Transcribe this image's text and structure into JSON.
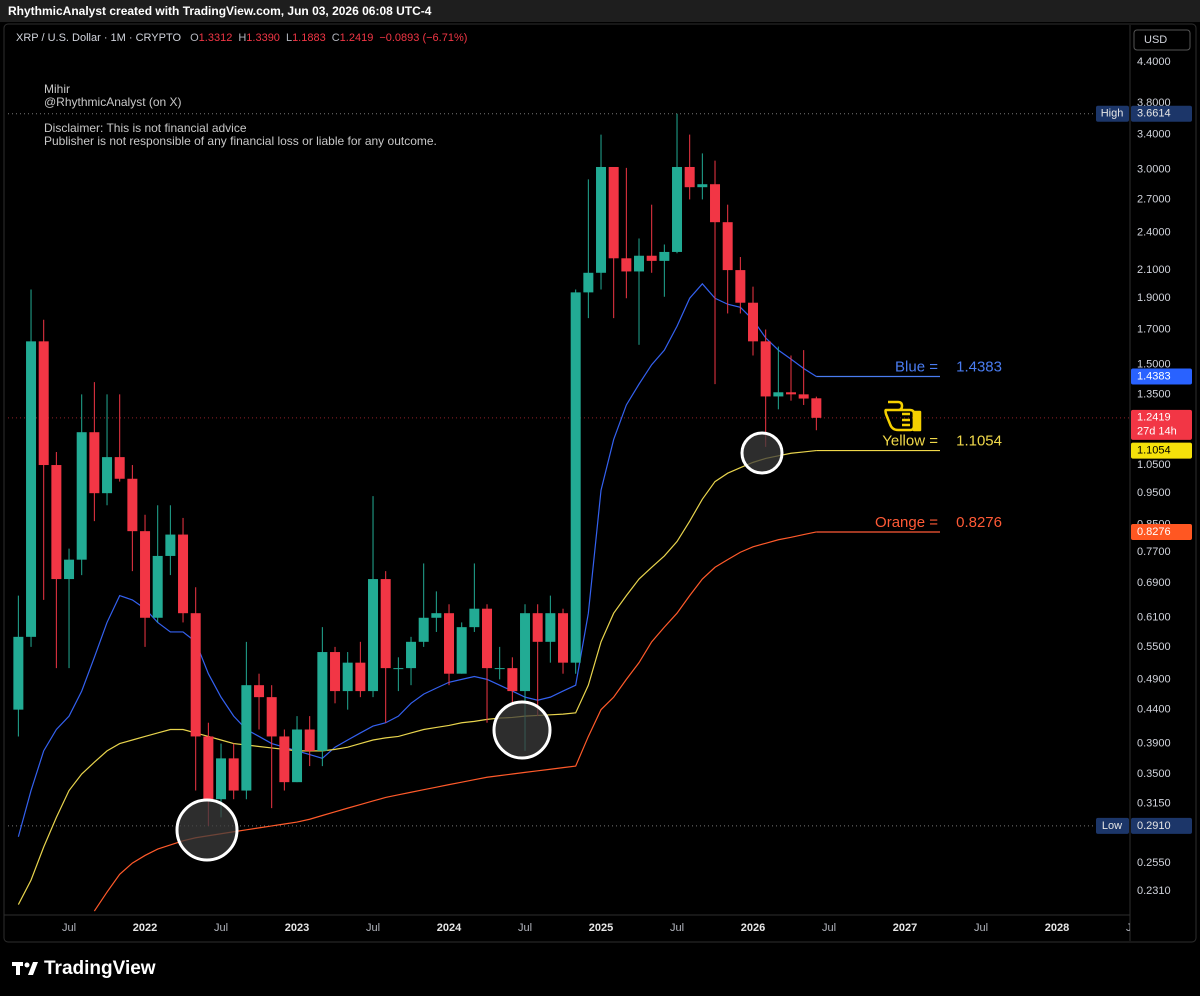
{
  "header": {
    "credit": "RhythmicAnalyst created with TradingView.com, Jun 03, 2026 06:08 UTC-4"
  },
  "footer": {
    "brand": "TradingView"
  },
  "chart_data": {
    "type": "candlestick",
    "title": "XRP / U.S. Dollar · 1M · CRYPTO",
    "ohlc_legend": [
      {
        "key": "O",
        "value": 1.3312
      },
      {
        "key": "H",
        "value": 1.339,
        "label": "1.3390"
      },
      {
        "key": "L",
        "value": 1.1883
      },
      {
        "key": "C",
        "value": 1.2419
      }
    ],
    "change": "−0.0893 (−6.71%)",
    "notes": [
      "Mihir",
      "@RhythmicAnalyst (on X)",
      "Disclaimer: This is not financial advice",
      "Publisher is not responsible of any financial loss or liable for any outcome."
    ],
    "currency": "USD",
    "x": [
      "2021-03",
      "2021-04",
      "2021-05",
      "2021-06",
      "2021-07",
      "2021-08",
      "2021-09",
      "2021-10",
      "2021-11",
      "2021-12",
      "2022-01",
      "2022-02",
      "2022-03",
      "2022-04",
      "2022-05",
      "2022-06",
      "2022-07",
      "2022-08",
      "2022-09",
      "2022-10",
      "2022-11",
      "2022-12",
      "2023-01",
      "2023-02",
      "2023-03",
      "2023-04",
      "2023-05",
      "2023-06",
      "2023-07",
      "2023-08",
      "2023-09",
      "2023-10",
      "2023-11",
      "2023-12",
      "2024-01",
      "2024-02",
      "2024-03",
      "2024-04",
      "2024-05",
      "2024-06",
      "2024-07",
      "2024-08",
      "2024-09",
      "2024-10",
      "2024-11",
      "2024-12",
      "2025-01",
      "2025-02",
      "2025-03",
      "2025-04",
      "2025-05",
      "2025-06",
      "2025-07",
      "2025-08",
      "2025-09",
      "2025-10",
      "2025-11",
      "2025-12",
      "2026-01",
      "2026-02",
      "2026-03",
      "2026-04",
      "2026-05",
      "2026-06"
    ],
    "open": [
      0.44,
      0.57,
      1.63,
      1.05,
      0.7,
      0.75,
      1.18,
      0.95,
      1.08,
      1.0,
      0.83,
      0.61,
      0.76,
      0.82,
      0.62,
      0.4,
      0.32,
      0.37,
      0.33,
      0.48,
      0.46,
      0.4,
      0.34,
      0.41,
      0.38,
      0.54,
      0.47,
      0.52,
      0.47,
      0.7,
      0.51,
      0.51,
      0.56,
      0.61,
      0.62,
      0.5,
      0.59,
      0.63,
      0.51,
      0.51,
      0.47,
      0.62,
      0.56,
      0.62,
      0.52,
      1.94,
      2.08,
      3.03,
      2.19,
      2.09,
      2.21,
      2.17,
      2.24,
      3.03,
      2.82,
      2.85,
      2.49,
      2.1,
      1.87,
      1.63,
      1.34,
      1.36,
      1.35,
      1.3312
    ],
    "high": [
      0.66,
      1.96,
      1.76,
      1.1,
      0.78,
      1.35,
      1.41,
      1.35,
      1.35,
      1.05,
      0.88,
      0.91,
      0.91,
      0.87,
      0.68,
      0.42,
      0.39,
      0.39,
      0.56,
      0.5,
      0.48,
      0.41,
      0.43,
      0.43,
      0.59,
      0.55,
      0.54,
      0.56,
      0.94,
      0.72,
      0.53,
      0.57,
      0.74,
      0.67,
      0.64,
      0.6,
      0.74,
      0.64,
      0.55,
      0.53,
      0.64,
      0.64,
      0.66,
      0.63,
      1.96,
      2.9,
      3.4,
      3.03,
      3.02,
      2.35,
      2.65,
      2.3,
      3.6614,
      3.4,
      3.18,
      3.1,
      2.65,
      2.2,
      1.98,
      1.7,
      1.6,
      1.55,
      1.58,
      1.339
    ],
    "low": [
      0.4,
      0.55,
      0.65,
      0.51,
      0.51,
      0.71,
      0.86,
      0.91,
      0.99,
      0.72,
      0.55,
      0.6,
      0.71,
      0.6,
      0.33,
      0.291,
      0.3,
      0.32,
      0.32,
      0.41,
      0.31,
      0.33,
      0.34,
      0.36,
      0.36,
      0.45,
      0.44,
      0.46,
      0.46,
      0.42,
      0.47,
      0.48,
      0.55,
      0.58,
      0.48,
      0.5,
      0.58,
      0.42,
      0.49,
      0.45,
      0.38,
      0.43,
      0.52,
      0.5,
      0.5,
      1.77,
      1.96,
      1.77,
      1.9,
      1.61,
      2.08,
      1.91,
      2.23,
      2.7,
      2.7,
      1.4,
      1.8,
      1.8,
      1.55,
      1.12,
      1.28,
      1.32,
      1.3,
      1.1883
    ],
    "close": [
      0.57,
      1.63,
      1.05,
      0.7,
      0.75,
      1.18,
      0.95,
      1.08,
      1.0,
      0.83,
      0.61,
      0.76,
      0.82,
      0.62,
      0.4,
      0.32,
      0.37,
      0.33,
      0.48,
      0.46,
      0.4,
      0.34,
      0.41,
      0.38,
      0.54,
      0.47,
      0.52,
      0.47,
      0.7,
      0.51,
      0.51,
      0.56,
      0.61,
      0.62,
      0.5,
      0.59,
      0.63,
      0.51,
      0.51,
      0.47,
      0.62,
      0.56,
      0.62,
      0.52,
      1.94,
      2.08,
      3.03,
      2.19,
      2.09,
      2.21,
      2.17,
      2.24,
      3.03,
      2.82,
      2.85,
      2.49,
      2.1,
      1.87,
      1.63,
      1.34,
      1.36,
      1.35,
      1.33,
      1.2419
    ],
    "up_color": "#22ab94",
    "down_color": "#f23645",
    "series": [
      {
        "color": "#3461f0",
        "values": [
          0.28,
          0.33,
          0.38,
          0.41,
          0.43,
          0.47,
          0.53,
          0.6,
          0.66,
          0.65,
          0.63,
          0.6,
          0.58,
          0.58,
          0.56,
          0.5,
          0.46,
          0.43,
          0.41,
          0.4,
          0.39,
          0.385,
          0.38,
          0.375,
          0.37,
          0.385,
          0.395,
          0.405,
          0.415,
          0.42,
          0.43,
          0.45,
          0.465,
          0.475,
          0.485,
          0.49,
          0.495,
          0.49,
          0.48,
          0.47,
          0.46,
          0.455,
          0.46,
          0.47,
          0.48,
          0.62,
          0.96,
          1.15,
          1.3,
          1.4,
          1.5,
          1.58,
          1.72,
          1.9,
          2.0,
          1.9,
          1.86,
          1.84,
          1.76,
          1.65,
          1.58,
          1.53,
          1.48,
          1.4383
        ]
      },
      {
        "color": "#e8d44d",
        "values": [
          0.22,
          0.24,
          0.27,
          0.3,
          0.33,
          0.35,
          0.365,
          0.38,
          0.39,
          0.395,
          0.4,
          0.405,
          0.41,
          0.41,
          0.405,
          0.4,
          0.395,
          0.39,
          0.388,
          0.386,
          0.384,
          0.382,
          0.38,
          0.38,
          0.38,
          0.382,
          0.385,
          0.39,
          0.395,
          0.398,
          0.4,
          0.405,
          0.41,
          0.413,
          0.416,
          0.42,
          0.422,
          0.425,
          0.427,
          0.428,
          0.43,
          0.431,
          0.432,
          0.433,
          0.435,
          0.48,
          0.56,
          0.62,
          0.66,
          0.7,
          0.73,
          0.76,
          0.8,
          0.86,
          0.93,
          0.99,
          1.02,
          1.04,
          1.06,
          1.075,
          1.085,
          1.095,
          1.1,
          1.1054
        ]
      },
      {
        "color": "#ff5a2a",
        "values": [
          null,
          null,
          null,
          null,
          null,
          null,
          0.215,
          0.23,
          0.245,
          0.255,
          0.262,
          0.268,
          0.272,
          0.276,
          0.279,
          0.281,
          0.283,
          0.285,
          0.287,
          0.289,
          0.291,
          0.293,
          0.295,
          0.298,
          0.302,
          0.306,
          0.31,
          0.314,
          0.318,
          0.322,
          0.325,
          0.328,
          0.331,
          0.334,
          0.337,
          0.34,
          0.343,
          0.346,
          0.348,
          0.35,
          0.352,
          0.354,
          0.356,
          0.358,
          0.36,
          0.4,
          0.44,
          0.46,
          0.49,
          0.52,
          0.56,
          0.59,
          0.62,
          0.66,
          0.7,
          0.73,
          0.75,
          0.77,
          0.785,
          0.795,
          0.805,
          0.812,
          0.82,
          0.8276
        ]
      }
    ],
    "annotations": [
      {
        "text": "Blue =",
        "value": 1.4383,
        "color": "#4a7cf0",
        "box_color": "#2962ff",
        "box_text": "#ffffff"
      },
      {
        "text": "Yellow =",
        "value": 1.1054,
        "color": "#f0d84a",
        "box_color": "#f5e10a",
        "box_text": "#000000"
      },
      {
        "text": "Orange =",
        "value": 0.8276,
        "color": "#ff5a36",
        "box_color": "#ff5722",
        "box_text": "#ffffff"
      }
    ],
    "high_marker": {
      "text": "High",
      "value": 3.6614
    },
    "low_marker": {
      "text": "Low",
      "value": 0.291,
      "label": "0.2910"
    },
    "last_price": {
      "value": 1.2419,
      "countdown": "27d 14h"
    },
    "log_scale": true,
    "grid": false,
    "ylim": [
      0.212,
      5.02
    ],
    "yticks": [
      {
        "value": 4.4,
        "label": "4.4000"
      },
      {
        "value": 3.8,
        "label": "3.8000"
      },
      {
        "value": 3.4,
        "label": "3.4000"
      },
      {
        "value": 3.0,
        "label": "3.0000"
      },
      {
        "value": 2.7,
        "label": "2.7000"
      },
      {
        "value": 2.4,
        "label": "2.4000"
      },
      {
        "value": 2.1,
        "label": "2.1000"
      },
      {
        "value": 1.9,
        "label": "1.9000"
      },
      {
        "value": 1.7,
        "label": "1.7000"
      },
      {
        "value": 1.5,
        "label": "1.5000"
      },
      {
        "value": 1.35,
        "label": "1.3500"
      },
      {
        "value": 1.05,
        "label": "1.0500"
      },
      {
        "value": 0.95,
        "label": "0.9500"
      },
      {
        "value": 0.85,
        "label": "0.8500"
      },
      {
        "value": 0.77,
        "label": "0.7700"
      },
      {
        "value": 0.69,
        "label": "0.6900"
      },
      {
        "value": 0.61,
        "label": "0.6100"
      },
      {
        "value": 0.55,
        "label": "0.5500"
      },
      {
        "value": 0.49,
        "label": "0.4900"
      },
      {
        "value": 0.44,
        "label": "0.4400"
      },
      {
        "value": 0.39,
        "label": "0.3900"
      },
      {
        "value": 0.35,
        "label": "0.3500"
      },
      {
        "value": 0.315,
        "label": "0.3150"
      },
      {
        "value": 0.255,
        "label": "0.2550"
      },
      {
        "value": 0.231,
        "label": "0.2310"
      }
    ],
    "xlim": [
      "2021-02",
      "2028-07"
    ],
    "xticks": [
      {
        "value": "2021-07",
        "label": "Jul"
      },
      {
        "value": "2022-01",
        "label": "2022"
      },
      {
        "value": "2022-07",
        "label": "Jul"
      },
      {
        "value": "2023-01",
        "label": "2023"
      },
      {
        "value": "2023-07",
        "label": "Jul"
      },
      {
        "value": "2024-01",
        "label": "2024"
      },
      {
        "value": "2024-07",
        "label": "Jul"
      },
      {
        "value": "2025-01",
        "label": "2025"
      },
      {
        "value": "2025-07",
        "label": "Jul"
      },
      {
        "value": "2026-01",
        "label": "2026"
      },
      {
        "value": "2026-07",
        "label": "Jul"
      },
      {
        "value": "2027-01",
        "label": "2027"
      },
      {
        "value": "2027-07",
        "label": "Jul"
      },
      {
        "value": "2028-01",
        "label": "2028"
      },
      {
        "value": "2028-07",
        "label": "Jul"
      }
    ]
  }
}
